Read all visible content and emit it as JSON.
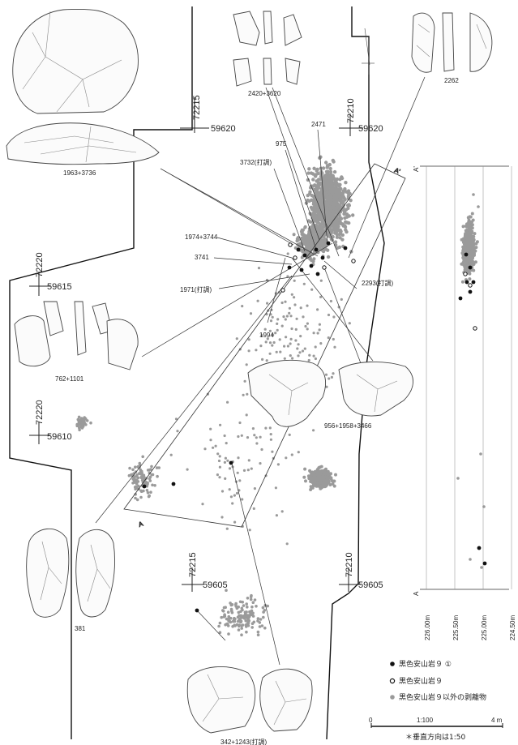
{
  "grid_labels": {
    "top": {
      "x1": "72215",
      "x2": "72210",
      "y": "59620"
    },
    "left_mid": {
      "x": "72220",
      "y": "59615"
    },
    "left_low": {
      "x": "72220",
      "y": "59610"
    },
    "bottom": {
      "x1": "72215",
      "x2": "72210",
      "y": "59605"
    }
  },
  "artifact_labels": {
    "a1963": "1963+3736",
    "a2420": "2420+3620",
    "a2262": "2262",
    "a2471": "2471",
    "a975": "975",
    "a3732": "3732(打調)",
    "a1974": "1974+3744",
    "a3741": "3741",
    "a1971": "1971(打調)",
    "a1994": "1994",
    "a2293": "2293(打調)",
    "a762": "762+1101",
    "a956": "956+1958+3466",
    "a381": "381",
    "a342": "342+1243(打調)"
  },
  "section": {
    "label_top": "A'",
    "label_bottom": "A",
    "elevations": [
      "226.00m",
      "225.50m",
      "225.00m",
      "224.50m"
    ]
  },
  "plan_markers": {
    "A": "A",
    "A_prime": "A'"
  },
  "legend": {
    "items": [
      {
        "label": "黒色安山岩９ ①",
        "color": "#111111",
        "symbol": "filled-dot"
      },
      {
        "label": "黒色安山岩９",
        "color": "#111111",
        "symbol": "open-dot"
      },
      {
        "label": "黒色安山岩９以外の剥離物",
        "color": "#9a9a9a",
        "symbol": "gray-dot"
      }
    ]
  },
  "scale": {
    "zero": "0",
    "ratio": "1:100",
    "end": "4 m",
    "note": "＊垂直方向は1:50"
  }
}
